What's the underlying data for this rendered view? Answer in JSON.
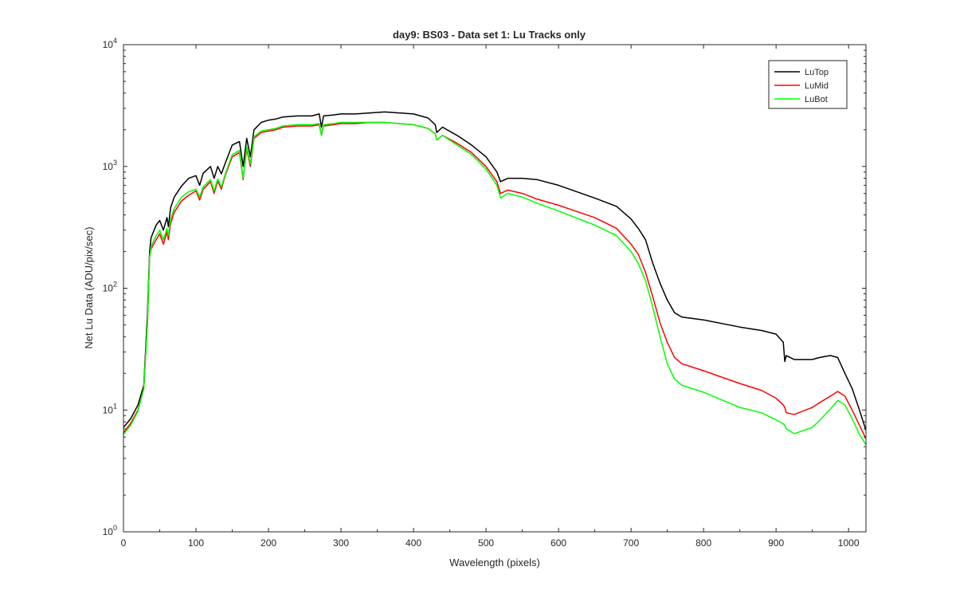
{
  "chart_data": {
    "type": "line",
    "title": "day9: BS03 - Data set 1: Lu Tracks only",
    "xlabel": "Wavelength (pixels)",
    "ylabel": "Net Lu Data (ADU/pix/sec)",
    "xlim": [
      0,
      1024
    ],
    "ylim": [
      1,
      10000
    ],
    "yscale": "log",
    "x_ticks": [
      "0",
      "100",
      "200",
      "300",
      "400",
      "500",
      "600",
      "700",
      "800",
      "900",
      "1000"
    ],
    "y_ticks": [
      {
        "base": "10",
        "exp": "0"
      },
      {
        "base": "10",
        "exp": "1"
      },
      {
        "base": "10",
        "exp": "2"
      },
      {
        "base": "10",
        "exp": "3"
      },
      {
        "base": "10",
        "exp": "4"
      }
    ],
    "grid": false,
    "legend_position": "top-right",
    "x": [
      0,
      10,
      20,
      28,
      33,
      36,
      38,
      45,
      50,
      55,
      60,
      62,
      65,
      70,
      80,
      90,
      100,
      105,
      110,
      120,
      125,
      130,
      135,
      140,
      150,
      160,
      165,
      170,
      175,
      180,
      190,
      200,
      210,
      220,
      240,
      260,
      270,
      273,
      276,
      290,
      300,
      320,
      340,
      360,
      380,
      400,
      420,
      430,
      432,
      440,
      460,
      480,
      500,
      515,
      520,
      530,
      550,
      570,
      600,
      650,
      680,
      700,
      710,
      720,
      730,
      740,
      750,
      760,
      770,
      800,
      850,
      880,
      900,
      910,
      912,
      914,
      925,
      950,
      960,
      975,
      985,
      995,
      1005,
      1015,
      1024
    ],
    "series": [
      {
        "name": "LuTop",
        "color": "#000000",
        "values": [
          7.2,
          8.5,
          11,
          16,
          60,
          200,
          260,
          330,
          360,
          300,
          380,
          320,
          460,
          560,
          690,
          800,
          840,
          700,
          880,
          1000,
          800,
          1000,
          870,
          1050,
          1500,
          1600,
          1000,
          1700,
          1200,
          2000,
          2300,
          2400,
          2450,
          2550,
          2600,
          2600,
          2700,
          2100,
          2600,
          2650,
          2700,
          2700,
          2750,
          2800,
          2750,
          2700,
          2500,
          2200,
          1900,
          2100,
          1800,
          1500,
          1200,
          900,
          750,
          800,
          800,
          780,
          700,
          550,
          470,
          370,
          310,
          250,
          160,
          110,
          80,
          63,
          58,
          55,
          48,
          45,
          42,
          36,
          25,
          28,
          26,
          26,
          27,
          28,
          27,
          20,
          15,
          10,
          6.8
        ]
      },
      {
        "name": "LuMid",
        "color": "#ff0000",
        "values": [
          6.5,
          7.8,
          10,
          15,
          50,
          180,
          210,
          250,
          280,
          230,
          290,
          250,
          340,
          420,
          520,
          580,
          630,
          530,
          650,
          750,
          600,
          760,
          650,
          830,
          1200,
          1300,
          780,
          1400,
          1000,
          1700,
          1900,
          1950,
          2000,
          2100,
          2150,
          2150,
          2200,
          1800,
          2150,
          2200,
          2250,
          2250,
          2300,
          2300,
          2250,
          2200,
          2050,
          1850,
          1650,
          1800,
          1550,
          1300,
          1000,
          750,
          600,
          640,
          600,
          540,
          480,
          380,
          310,
          230,
          190,
          135,
          85,
          52,
          36,
          27,
          24,
          21,
          16.5,
          14.5,
          12.5,
          11,
          10.5,
          9.5,
          9.2,
          10.5,
          11.5,
          13,
          14.2,
          13,
          10,
          7.5,
          5.8
        ]
      },
      {
        "name": "LuBot",
        "color": "#00ff00",
        "values": [
          6.3,
          7.5,
          9.8,
          15,
          50,
          180,
          220,
          270,
          300,
          250,
          310,
          270,
          370,
          450,
          560,
          620,
          650,
          560,
          680,
          780,
          630,
          790,
          680,
          850,
          1250,
          1350,
          800,
          1450,
          1050,
          1750,
          1950,
          2000,
          2050,
          2150,
          2200,
          2200,
          2250,
          1800,
          2200,
          2250,
          2300,
          2300,
          2300,
          2300,
          2250,
          2200,
          2050,
          1850,
          1650,
          1800,
          1500,
          1250,
          950,
          700,
          550,
          600,
          560,
          500,
          430,
          330,
          270,
          200,
          160,
          115,
          70,
          40,
          24,
          18,
          16,
          14,
          10.5,
          9.5,
          8.3,
          7.7,
          7.5,
          7.0,
          6.4,
          7.2,
          8.2,
          10.2,
          12,
          11,
          8.5,
          6.3,
          5.2
        ]
      }
    ]
  }
}
